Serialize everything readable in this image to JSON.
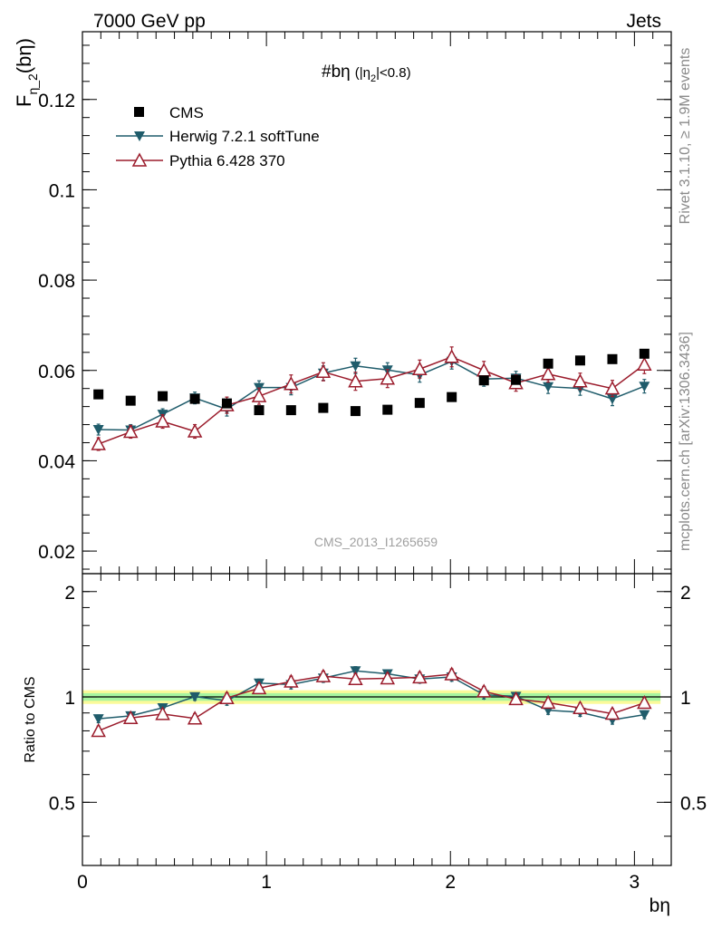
{
  "header": {
    "left_label": "7000 GeV pp",
    "right_label": "Jets"
  },
  "side_labels": {
    "rivet": "Rivet 3.1.10, ≥ 1.9M events",
    "mcplots": "mcplots.cern.ch [arXiv:1306.3436]"
  },
  "chart_data": {
    "type": "scatter",
    "title": "#bη",
    "title_suffix": "(|η",
    "title_sub": "2",
    "title_suffix2": "|<0.8)",
    "analysis_id": "CMS_2013_I1265659",
    "xlabel": "bη",
    "ylabel_main": "F",
    "ylabel_sub": "η_2",
    "ylabel_tail": "(bη)",
    "ratio_ylabel": "Ratio to CMS",
    "xlim": [
      0,
      3.2
    ],
    "ylim": [
      0.015,
      0.135
    ],
    "ratio_ylim": [
      0.33,
      2.25
    ],
    "x_ticks": [
      "0",
      "1",
      "2",
      "3"
    ],
    "y_ticks": [
      "0.02",
      "0.04",
      "0.06",
      "0.08",
      "0.1",
      "0.12"
    ],
    "ratio_ticks": [
      "0.5",
      "1",
      "2"
    ],
    "x": [
      0.087,
      0.262,
      0.436,
      0.611,
      0.785,
      0.96,
      1.134,
      1.309,
      1.484,
      1.658,
      1.833,
      2.007,
      2.182,
      2.356,
      2.531,
      2.705,
      2.88,
      3.054
    ],
    "series": [
      {
        "name": "CMS",
        "color": "#000000",
        "values": [
          0.0547,
          0.0533,
          0.0543,
          0.0537,
          0.0527,
          0.0512,
          0.0512,
          0.0517,
          0.051,
          0.0513,
          0.0528,
          0.0541,
          0.0578,
          0.0579,
          0.0615,
          0.0622,
          0.0625,
          0.0637
        ],
        "band_stat": 0.025,
        "band_total": 0.045
      },
      {
        "name": "Herwig 7.2.1 softTune",
        "color": "#1f5c6b",
        "values": [
          0.0469,
          0.0468,
          0.0503,
          0.0539,
          0.0514,
          0.0562,
          0.0562,
          0.0594,
          0.061,
          0.0601,
          0.059,
          0.062,
          0.0581,
          0.0583,
          0.0564,
          0.056,
          0.0537,
          0.0565
        ],
        "errors": [
          0.0012,
          0.0012,
          0.0012,
          0.0013,
          0.0015,
          0.0015,
          0.0016,
          0.0016,
          0.0017,
          0.0016,
          0.0016,
          0.0017,
          0.0016,
          0.0015,
          0.0015,
          0.0015,
          0.0015,
          0.0015
        ],
        "ratio": [
          0.866,
          0.883,
          0.931,
          1.002,
          0.975,
          1.095,
          1.085,
          1.132,
          1.187,
          1.164,
          1.125,
          1.14,
          1.014,
          1.004,
          0.916,
          0.904,
          0.86,
          0.89
        ]
      },
      {
        "name": "Pythia 6.428 370",
        "color": "#9b1c2c",
        "values": [
          0.0437,
          0.0464,
          0.0487,
          0.0465,
          0.0523,
          0.0543,
          0.057,
          0.0597,
          0.0576,
          0.0582,
          0.0603,
          0.063,
          0.06,
          0.0572,
          0.0592,
          0.0576,
          0.056,
          0.0613
        ],
        "errors": [
          0.0014,
          0.0014,
          0.0015,
          0.0015,
          0.0018,
          0.0018,
          0.002,
          0.002,
          0.002,
          0.002,
          0.002,
          0.0022,
          0.002,
          0.0018,
          0.0018,
          0.0018,
          0.0018,
          0.002
        ],
        "ratio": [
          0.8,
          0.871,
          0.894,
          0.868,
          0.993,
          1.059,
          1.107,
          1.146,
          1.125,
          1.13,
          1.138,
          1.161,
          1.037,
          0.986,
          0.963,
          0.93,
          0.896,
          0.962
        ]
      }
    ]
  }
}
